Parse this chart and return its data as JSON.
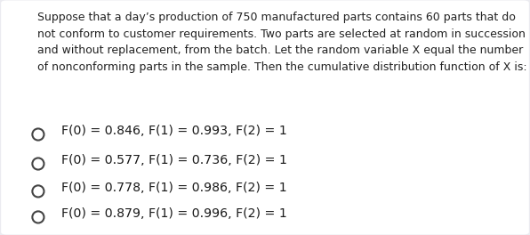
{
  "background_color": "#ebebf0",
  "box_color": "#ffffff",
  "paragraph": "Suppose that a day’s production of 750 manufactured parts contains 60 parts that do\nnot conform to customer requirements. Two parts are selected at random in succession\nand without replacement, from the batch. Let the random variable X equal the number\nof nonconforming parts in the sample. Then the cumulative distribution function of X is:",
  "options": [
    "F(0) = 0.846, F(1) = 0.993, F(2) = 1",
    "F(0) = 0.577, F(1) = 0.736, F(2) = 1",
    "F(0) = 0.778, F(1) = 0.986, F(2) = 1",
    "F(0) = 0.879, F(1) = 0.996, F(2) = 1"
  ],
  "text_color": "#222222",
  "option_text_color": "#1a1a1a",
  "paragraph_fontsize": 9.0,
  "option_fontsize": 10.2,
  "circle_color": "#444444",
  "circle_lw": 1.5
}
